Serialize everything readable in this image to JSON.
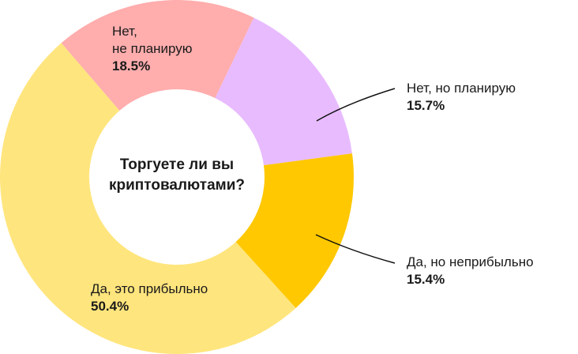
{
  "chart_data": {
    "type": "pie",
    "donut": true,
    "title": "Торгуете ли вы криптовалютами?",
    "slices": [
      {
        "label": "Нет, но планирую",
        "value": 15.7,
        "display": "15.7%",
        "color": "#e8bbff"
      },
      {
        "label": "Да, но неприбыльно",
        "value": 15.4,
        "display": "15.4%",
        "color": "#ffc800"
      },
      {
        "label": "Да, это прибыльно",
        "value": 50.4,
        "display": "50.4%",
        "color": "#ffe57d"
      },
      {
        "label_lines": [
          "Нет,",
          "не планирую"
        ],
        "label": "Нет, не планирую",
        "value": 18.5,
        "display": "18.5%",
        "color": "#ffadad"
      }
    ]
  }
}
